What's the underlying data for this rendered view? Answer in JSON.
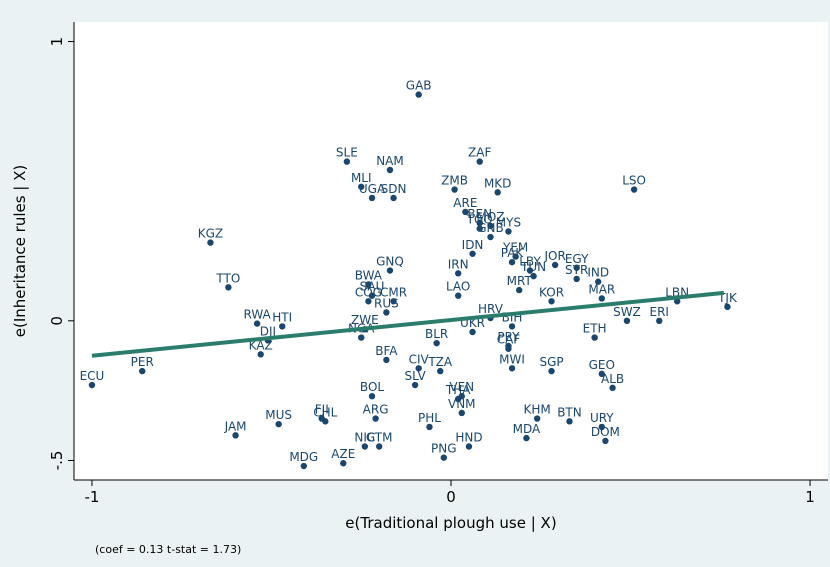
{
  "chart_data": {
    "type": "scatter",
    "x_label": "e(Traditional plough use | X)",
    "y_label": "e(Inheritance rules | X)",
    "note": "(coef = 0.13 t-stat = 1.73)",
    "xlim": [
      -1.05,
      1.05
    ],
    "ylim": [
      -0.57,
      1.07
    ],
    "xticks": [
      -1,
      0,
      1
    ],
    "yticks": [
      {
        "value": -0.5,
        "label": "-.5"
      },
      0,
      1
    ],
    "points": {
      "color": "#1a476f",
      "labels": [
        "GAB",
        "ZAF",
        "SLE",
        "NAM",
        "MLI",
        "UGA",
        "SDN",
        "MKD",
        "LSO",
        "ZMB",
        "ARE",
        "BEN",
        "MOZ",
        "MYS",
        "TGO",
        "GNB",
        "KGZ",
        "IDN",
        "YEM",
        "JOR",
        "EGY",
        "PAK",
        "LBY",
        "IRN",
        "GNQ",
        "TTO",
        "BWA",
        "LAO",
        "TUN",
        "SYR",
        "IND",
        "MRT",
        "KOR",
        "MAR",
        "LBN",
        "TJK",
        "SWZ",
        "ERI",
        "COG",
        "CMR",
        "SAU",
        "HRV",
        "BIH",
        "UKR",
        "PRY",
        "CAF",
        "ZWE",
        "NGA",
        "RUS",
        "BFA",
        "BLR",
        "HTI",
        "RWA",
        "DJI",
        "KAZ",
        "ETH",
        "PER",
        "ECU",
        "SGP",
        "GEO",
        "ALB",
        "CIV",
        "TZA",
        "MWI",
        "SLV",
        "THA",
        "VEN",
        "VNM",
        "BOL",
        "ARG",
        "PHL",
        "KHM",
        "BTN",
        "MDA",
        "URY",
        "DOM",
        "HND",
        "MUS",
        "CHL",
        "FJI",
        "JAM",
        "GTM",
        "NIC",
        "AZE",
        "MDG",
        "PNG"
      ],
      "x": [
        -0.09,
        0.08,
        -0.29,
        -0.17,
        -0.25,
        -0.22,
        -0.16,
        0.13,
        0.51,
        0.01,
        0.04,
        0.08,
        0.11,
        0.16,
        0.08,
        0.11,
        -0.67,
        0.06,
        0.18,
        0.29,
        0.35,
        0.17,
        0.22,
        0.02,
        -0.17,
        -0.62,
        -0.23,
        0.02,
        0.23,
        0.35,
        0.41,
        0.19,
        0.28,
        0.42,
        0.63,
        0.77,
        0.49,
        0.58,
        -0.23,
        -0.16,
        -0.22,
        0.11,
        0.17,
        0.06,
        0.16,
        0.16,
        -0.24,
        -0.25,
        -0.18,
        -0.18,
        -0.04,
        -0.47,
        -0.54,
        -0.51,
        -0.53,
        0.4,
        -0.86,
        -1.0,
        0.28,
        0.42,
        0.45,
        -0.09,
        -0.03,
        0.17,
        -0.1,
        0.02,
        0.03,
        0.03,
        -0.22,
        -0.21,
        -0.06,
        0.24,
        0.33,
        0.21,
        0.42,
        0.43,
        0.05,
        -0.48,
        -0.35,
        -0.36,
        -0.6,
        -0.2,
        -0.24,
        -0.3,
        -0.41,
        -0.02
      ],
      "values": [
        0.81,
        0.57,
        0.57,
        0.54,
        0.48,
        0.44,
        0.44,
        0.46,
        0.47,
        0.47,
        0.39,
        0.35,
        0.34,
        0.32,
        0.33,
        0.3,
        0.28,
        0.24,
        0.23,
        0.2,
        0.19,
        0.21,
        0.18,
        0.17,
        0.18,
        0.12,
        0.13,
        0.09,
        0.16,
        0.15,
        0.14,
        0.11,
        0.07,
        0.08,
        0.07,
        0.05,
        0.0,
        0.0,
        0.07,
        0.07,
        0.09,
        0.01,
        -0.02,
        -0.04,
        -0.09,
        -0.1,
        -0.03,
        -0.06,
        0.03,
        -0.14,
        -0.08,
        -0.02,
        -0.01,
        -0.07,
        -0.12,
        -0.06,
        -0.18,
        -0.23,
        -0.18,
        -0.19,
        -0.24,
        -0.17,
        -0.18,
        -0.17,
        -0.23,
        -0.28,
        -0.27,
        -0.33,
        -0.27,
        -0.35,
        -0.38,
        -0.35,
        -0.36,
        -0.42,
        -0.38,
        -0.43,
        -0.45,
        -0.37,
        -0.36,
        -0.35,
        -0.41,
        -0.45,
        -0.45,
        -0.51,
        -0.52,
        -0.49
      ]
    },
    "fit": {
      "color": "#2a7d6c",
      "x": [
        -1,
        0.76
      ],
      "values": [
        -0.125,
        0.1
      ]
    }
  }
}
